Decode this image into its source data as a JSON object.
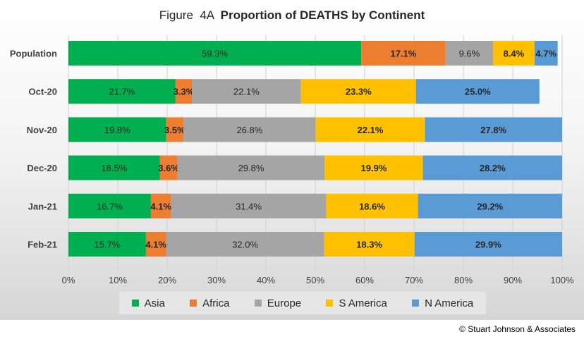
{
  "title": {
    "prefix": "Figure  4A  ",
    "main": "Proportion of DEATHS by Continent"
  },
  "copyright": "© Stuart Johnson & Associates",
  "chart_data": {
    "type": "bar",
    "orientation": "horizontal",
    "stacked": true,
    "title": "Figure 4A Proportion of DEATHS by Continent",
    "categories": [
      "Population",
      "Oct-20",
      "Nov-20",
      "Dec-20",
      "Jan-21",
      "Feb-21"
    ],
    "series": [
      {
        "name": "Asia",
        "color": "#00b050",
        "values": [
          59.3,
          21.7,
          19.8,
          18.5,
          16.7,
          15.7
        ],
        "labels": [
          "59.3%",
          "21.7%",
          "19.8%",
          "18.5%",
          "16.7%",
          "15.7%"
        ],
        "label_bold": false
      },
      {
        "name": "Africa",
        "color": "#ed7d31",
        "values": [
          17.1,
          3.3,
          3.5,
          3.6,
          4.1,
          4.1
        ],
        "labels": [
          "17.1%",
          "3.3%",
          "3.5%",
          "3.6%",
          "4.1%",
          "4.1%"
        ],
        "label_bold": true
      },
      {
        "name": "Europe",
        "color": "#a5a5a5",
        "values": [
          9.6,
          22.1,
          26.8,
          29.8,
          31.4,
          32.0
        ],
        "labels": [
          "9.6%",
          "22.1%",
          "26.8%",
          "29.8%",
          "31.4%",
          "32.0%"
        ],
        "label_bold": false
      },
      {
        "name": "S America",
        "color": "#ffc000",
        "values": [
          8.4,
          23.3,
          22.1,
          19.9,
          18.6,
          18.3
        ],
        "labels": [
          "8.4%",
          "23.3%",
          "22.1%",
          "19.9%",
          "18.6%",
          "18.3%"
        ],
        "label_bold": true
      },
      {
        "name": "N America",
        "color": "#5b9bd5",
        "values": [
          4.7,
          25.0,
          27.8,
          28.2,
          29.2,
          29.9
        ],
        "labels": [
          "4.7%",
          "25.0%",
          "27.8%",
          "28.2%",
          "29.2%",
          "29.9%"
        ],
        "label_bold": true
      }
    ],
    "xlim": [
      0,
      100
    ],
    "x_ticks": [
      "0%",
      "10%",
      "20%",
      "30%",
      "40%",
      "50%",
      "60%",
      "70%",
      "80%",
      "90%",
      "100%"
    ],
    "grid": true,
    "legend_position": "bottom"
  }
}
